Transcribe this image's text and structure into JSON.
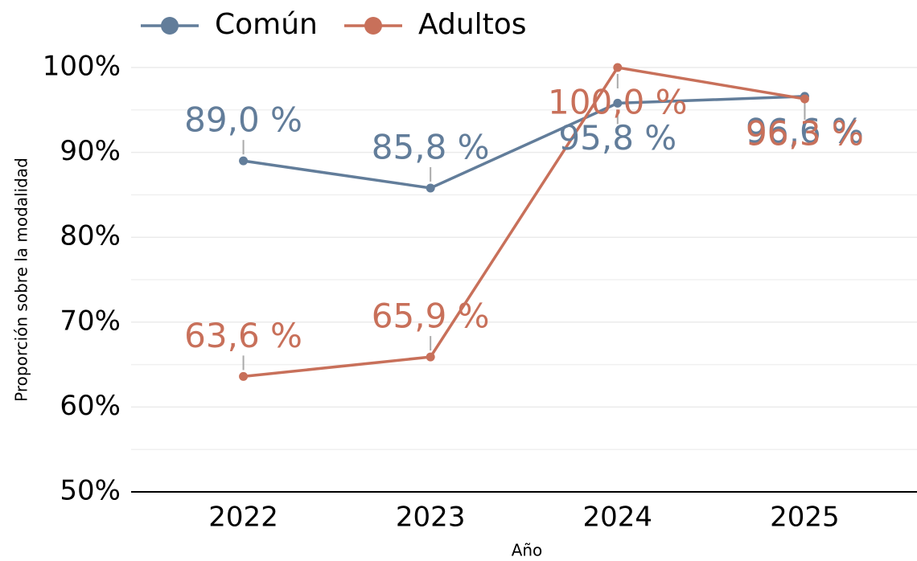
{
  "chart_data": {
    "type": "line",
    "x_label": "Año",
    "y_label": "Proporción sobre la modalidad",
    "categories": [
      "2022",
      "2023",
      "2024",
      "2025"
    ],
    "series": [
      {
        "name": "Común",
        "color": "#627d9a",
        "values": [
          89.0,
          85.8,
          95.8,
          96.6
        ],
        "value_labels": [
          "89,0 %",
          "85,8 %",
          "95,8 %",
          "96,6 %"
        ]
      },
      {
        "name": "Adultos",
        "color": "#c8705a",
        "values": [
          63.6,
          65.9,
          100.0,
          96.3
        ],
        "value_labels": [
          "63,6 %",
          "65,9 %",
          "100,0 %",
          "96,3 %"
        ]
      }
    ],
    "ylim": [
      50,
      100
    ],
    "yticks": [
      {
        "value": 50,
        "label": "50%"
      },
      {
        "value": 60,
        "label": "60%"
      },
      {
        "value": 70,
        "label": "70%"
      },
      {
        "value": 80,
        "label": "80%"
      },
      {
        "value": 90,
        "label": "90%"
      },
      {
        "value": 100,
        "label": "100%"
      }
    ],
    "minor_yticks": [
      55,
      65,
      75,
      85,
      95
    ],
    "grid": true,
    "legend": "top"
  }
}
